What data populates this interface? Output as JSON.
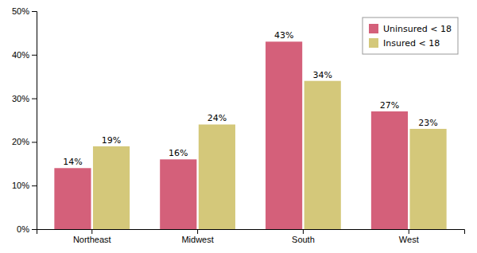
{
  "chart_data": {
    "type": "bar",
    "categories": [
      "Northeast",
      "Midwest",
      "South",
      "West"
    ],
    "series": [
      {
        "name": "Uninsured < 18",
        "color": "#D4607A",
        "values": [
          14,
          16,
          43,
          27
        ],
        "value_labels": [
          "14%",
          "16%",
          "43%",
          "27%"
        ]
      },
      {
        "name": "Insured < 18",
        "color": "#D4C87A",
        "values": [
          19,
          24,
          34,
          23
        ],
        "value_labels": [
          "19%",
          "24%",
          "34%",
          "23%"
        ]
      }
    ],
    "ylim": [
      0,
      50
    ],
    "yticks": [
      {
        "value": 0,
        "label": "0%"
      },
      {
        "value": 10,
        "label": "10%"
      },
      {
        "value": 20,
        "label": "20%"
      },
      {
        "value": 30,
        "label": "30%"
      },
      {
        "value": 40,
        "label": "40%"
      },
      {
        "value": 50,
        "label": "50%"
      }
    ],
    "grid": false,
    "legend": "upper right",
    "data_labels": true
  }
}
